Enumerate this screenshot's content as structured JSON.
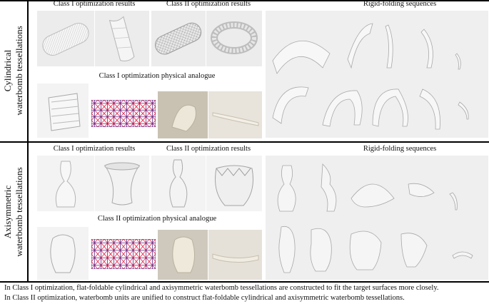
{
  "sections": [
    {
      "label_line1": "Cylindrical",
      "label_line2": "waterbomb tessellations",
      "class1_title": "Class I optimization results",
      "class2_title": "Class II optimization results",
      "rigid_title": "Rigid-folding sequences",
      "analogue_title": "Class I optimization physical analogue"
    },
    {
      "label_line1": "Axisymmetric",
      "label_line2": "waterbomb tessellations",
      "class1_title": "Class I optimization results",
      "class2_title": "Class II optimization results",
      "rigid_title": "Rigid-folding sequences",
      "analogue_title": "Class II optimization physical analogue"
    }
  ],
  "caption": {
    "line1": "In Class I optimization, flat-foldable cylindrical and axisymmetric waterbomb tessellations are constructed to fit the target surfaces more closely.",
    "line2": "In Class II optimization, waterbomb units are unified to construct flat-foldable cylindrical and axisymmetric waterbomb tessellations."
  },
  "colors": {
    "pattern_purple": "#5a2a8a",
    "pattern_red": "#e0204a",
    "panel_bg": "#ececec"
  }
}
